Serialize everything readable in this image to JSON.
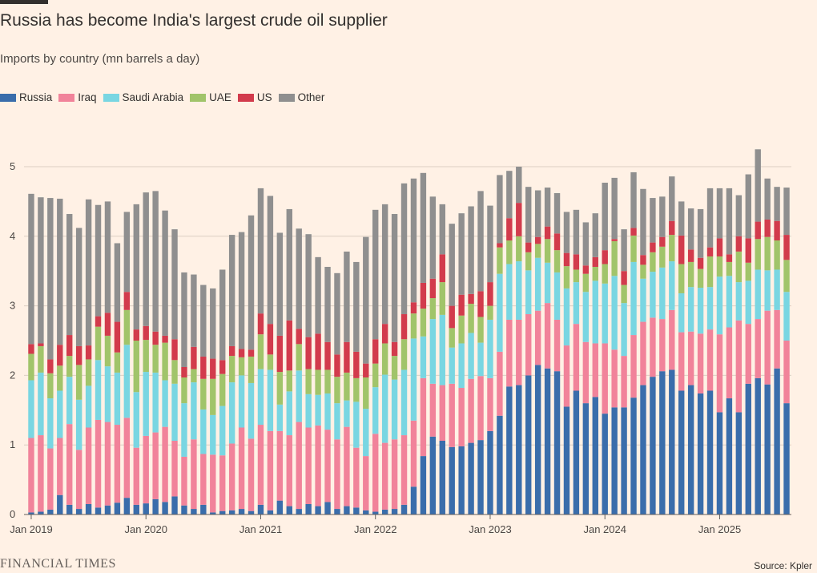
{
  "title": "Russia has become India's largest crude oil supplier",
  "subtitle": "Imports by country (mn barrels a day)",
  "legend": [
    {
      "name": "Russia",
      "color": "#3A6DAB"
    },
    {
      "name": "Iraq",
      "color": "#F1839A"
    },
    {
      "name": "Saudi Arabia",
      "color": "#79D6E2"
    },
    {
      "name": "UAE",
      "color": "#A1C46A"
    },
    {
      "name": "US",
      "color": "#D23B4C"
    },
    {
      "name": "Other",
      "color": "#8F8F8F"
    }
  ],
  "footer": {
    "brand": "FINANCIAL TIMES",
    "source": "Source: Kpler"
  },
  "chart_data": {
    "type": "bar",
    "stacked": true,
    "ylim": [
      0,
      5.3
    ],
    "yticks": [
      "0",
      "1",
      "2",
      "3",
      "4",
      "5"
    ],
    "xticks": [
      {
        "label": "Jan 2019",
        "index": 0
      },
      {
        "label": "Jan 2020",
        "index": 12
      },
      {
        "label": "Jan 2021",
        "index": 24
      },
      {
        "label": "Jan 2022",
        "index": 36
      },
      {
        "label": "Jan 2023",
        "index": 48
      },
      {
        "label": "Jan 2024",
        "index": 60
      },
      {
        "label": "Jan 2025",
        "index": 72
      }
    ],
    "grid": true,
    "legend_position": "top-left",
    "series": [
      {
        "name": "Russia",
        "color": "#3A6DAB",
        "values": [
          0.03,
          0.04,
          0.07,
          0.28,
          0.14,
          0.08,
          0.15,
          0.1,
          0.13,
          0.17,
          0.24,
          0.14,
          0.16,
          0.22,
          0.18,
          0.26,
          0.13,
          0.08,
          0.14,
          0.03,
          0.05,
          0.06,
          0.08,
          0.05,
          0.14,
          0.06,
          0.2,
          0.12,
          0.08,
          0.15,
          0.12,
          0.18,
          0.08,
          0.12,
          0.1,
          0.06,
          0.04,
          0.07,
          0.08,
          0.14,
          0.4,
          0.84,
          1.12,
          1.06,
          0.97,
          0.98,
          1.03,
          1.07,
          1.2,
          1.42,
          1.84,
          1.86,
          2.0,
          2.15,
          2.1,
          2.06,
          1.55,
          1.78,
          1.6,
          1.69,
          1.45,
          1.54,
          1.54,
          1.68,
          1.86,
          1.98,
          2.06,
          2.08,
          1.78,
          1.86,
          1.74,
          1.78,
          1.47,
          1.67,
          1.47,
          1.88,
          1.96,
          1.87,
          2.1,
          1.6
        ]
      },
      {
        "name": "Iraq",
        "color": "#F1839A",
        "values": [
          1.07,
          1.1,
          0.88,
          0.82,
          1.16,
          0.85,
          1.1,
          1.26,
          1.2,
          1.12,
          1.15,
          0.82,
          0.97,
          0.96,
          1.08,
          0.8,
          0.7,
          1.0,
          0.73,
          0.83,
          0.8,
          0.96,
          1.17,
          1.04,
          1.15,
          1.14,
          1.0,
          1.02,
          1.25,
          1.1,
          1.16,
          1.04,
          1.0,
          1.14,
          0.86,
          0.78,
          1.12,
          0.96,
          1.0,
          1.0,
          0.95,
          1.12,
          0.76,
          0.8,
          0.91,
          0.84,
          0.92,
          0.92,
          0.76,
          0.92,
          0.96,
          0.94,
          0.88,
          0.78,
          0.94,
          0.74,
          0.88,
          0.96,
          0.88,
          0.77,
          1.01,
          0.83,
          0.74,
          0.9,
          0.91,
          0.85,
          0.75,
          0.86,
          0.84,
          0.77,
          0.86,
          0.88,
          1.12,
          1.02,
          1.32,
          0.86,
          0.85,
          1.06,
          0.84,
          0.9
        ]
      },
      {
        "name": "Saudi Arabia",
        "color": "#79D6E2",
        "values": [
          0.83,
          0.9,
          0.72,
          0.68,
          0.68,
          0.72,
          0.6,
          0.86,
          0.8,
          0.75,
          1.05,
          0.8,
          0.92,
          0.86,
          0.67,
          0.82,
          0.77,
          0.82,
          0.64,
          0.57,
          0.71,
          0.88,
          0.75,
          0.8,
          0.8,
          0.88,
          0.38,
          0.63,
          0.74,
          0.48,
          0.44,
          0.52,
          0.52,
          0.38,
          0.66,
          0.68,
          0.67,
          0.98,
          0.86,
          0.94,
          1.18,
          0.6,
          0.93,
          1.01,
          0.52,
          0.64,
          0.66,
          0.48,
          0.84,
          1.12,
          0.8,
          0.84,
          0.63,
          0.76,
          0.58,
          0.68,
          0.82,
          0.6,
          0.72,
          0.9,
          0.86,
          1.06,
          0.76,
          1.05,
          0.62,
          0.66,
          0.74,
          0.7,
          0.56,
          0.64,
          0.66,
          0.61,
          0.83,
          0.74,
          0.55,
          0.62,
          0.71,
          0.58,
          0.58,
          0.7
        ]
      },
      {
        "name": "UAE",
        "color": "#A1C46A",
        "values": [
          0.38,
          0.38,
          0.36,
          0.36,
          0.3,
          0.5,
          0.38,
          0.48,
          0.44,
          0.29,
          0.5,
          0.74,
          0.46,
          0.4,
          0.54,
          0.34,
          0.37,
          0.19,
          0.44,
          0.52,
          0.46,
          0.38,
          0.26,
          0.38,
          0.5,
          0.22,
          0.47,
          0.3,
          0.38,
          0.36,
          0.36,
          0.34,
          0.38,
          0.4,
          0.34,
          0.45,
          0.34,
          0.45,
          0.34,
          0.44,
          0.36,
          0.4,
          0.3,
          0.47,
          0.28,
          0.4,
          0.42,
          0.37,
          0.2,
          0.38,
          0.34,
          0.36,
          0.26,
          0.2,
          0.34,
          0.32,
          0.32,
          0.18,
          0.26,
          0.2,
          0.28,
          0.5,
          0.26,
          0.38,
          0.2,
          0.28,
          0.3,
          0.38,
          0.42,
          0.36,
          0.27,
          0.44,
          0.29,
          0.2,
          0.44,
          0.26,
          0.44,
          0.48,
          0.42,
          0.46
        ]
      },
      {
        "name": "US",
        "color": "#D23B4C",
        "values": [
          0.14,
          0.04,
          0.2,
          0.3,
          0.3,
          0.27,
          0.2,
          0.15,
          0.33,
          0.44,
          0.26,
          0.16,
          0.2,
          0.19,
          0.1,
          0.3,
          0.15,
          0.32,
          0.32,
          0.29,
          0.2,
          0.14,
          0.12,
          0.1,
          0.3,
          0.44,
          0.52,
          0.72,
          0.22,
          0.46,
          0.52,
          0.4,
          0.32,
          0.44,
          0.38,
          0.2,
          0.35,
          0.28,
          0.2,
          0.36,
          0.16,
          0.37,
          0.28,
          0.4,
          0.32,
          0.3,
          0.14,
          0.37,
          0.34,
          0.06,
          0.32,
          0.48,
          0.14,
          0.1,
          0.18,
          0.24,
          0.19,
          0.22,
          0.12,
          0.14,
          0.2,
          0.03,
          0.2,
          0.11,
          0.14,
          0.14,
          0.14,
          0.2,
          0.41,
          0.18,
          0.16,
          0.13,
          0.26,
          0.11,
          0.22,
          0.35,
          0.25,
          0.25,
          0.28,
          0.36
        ]
      },
      {
        "name": "Other",
        "color": "#8F8F8F",
        "values": [
          2.16,
          2.1,
          2.32,
          2.1,
          1.74,
          1.7,
          2.1,
          1.6,
          1.6,
          1.13,
          1.15,
          1.8,
          1.92,
          2.02,
          1.8,
          1.58,
          1.36,
          1.04,
          1.03,
          1.01,
          1.3,
          1.6,
          1.68,
          1.93,
          1.8,
          1.84,
          1.48,
          1.6,
          1.44,
          1.48,
          1.1,
          1.08,
          1.17,
          1.3,
          1.29,
          1.82,
          1.86,
          1.72,
          1.84,
          1.88,
          1.78,
          1.58,
          1.18,
          0.72,
          1.18,
          1.17,
          1.26,
          1.44,
          1.1,
          0.98,
          0.68,
          0.52,
          0.8,
          0.67,
          0.56,
          0.58,
          0.59,
          0.64,
          0.62,
          0.63,
          0.97,
          0.88,
          0.6,
          0.8,
          0.95,
          0.64,
          0.58,
          0.64,
          0.49,
          0.59,
          0.7,
          0.85,
          0.72,
          0.95,
          0.59,
          0.92,
          1.04,
          0.59,
          0.49,
          0.68
        ]
      }
    ]
  }
}
